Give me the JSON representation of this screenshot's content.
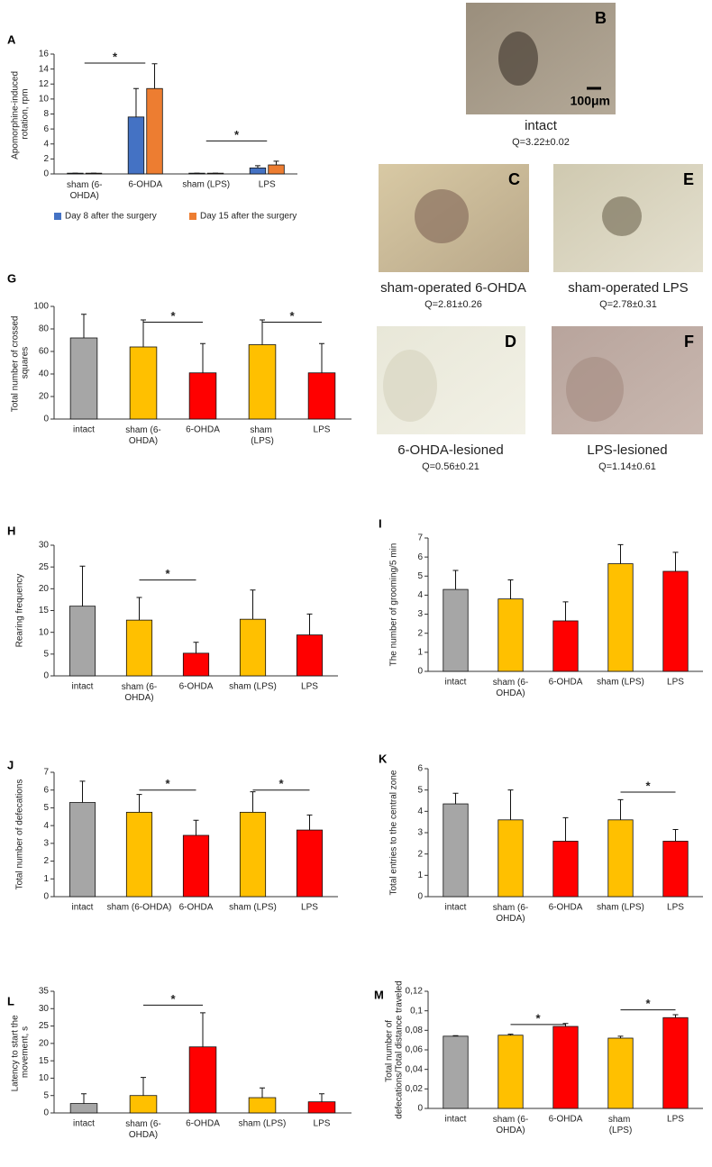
{
  "chart_data": [
    {
      "type": "grouped_bar",
      "panel": "A",
      "ylabel": "Apomorphine-induced rotation, rpm",
      "categories": [
        "sham (6-OHDA)",
        "6-OHDA",
        "sham (LPS)",
        "LPS"
      ],
      "series": [
        {
          "name": "Day 8 after the surgery",
          "color": "#4472c4",
          "values": [
            0.1,
            7.6,
            0.1,
            0.8
          ],
          "errors": [
            0,
            3.8,
            0,
            0.3
          ]
        },
        {
          "name": "Day 15 after the surgery",
          "color": "#ed7d31",
          "values": [
            0.1,
            11.4,
            0.1,
            1.2
          ],
          "errors": [
            0,
            3.3,
            0,
            0.5
          ]
        }
      ],
      "ylim": [
        0,
        16
      ],
      "yticks": [
        0,
        2,
        4,
        6,
        8,
        10,
        12,
        14,
        16
      ],
      "significance": [
        {
          "from": 0,
          "to": 1,
          "y": 14.8,
          "label": "*"
        },
        {
          "from": 2,
          "to": 3,
          "y": 4.4,
          "label": "*"
        }
      ]
    },
    {
      "type": "bar",
      "panel": "G",
      "ylabel": "Total number of crossed squares",
      "categories": [
        "intact",
        "sham (6-OHDA)",
        "6-OHDA",
        "sham (LPS)",
        "LPS"
      ],
      "values": [
        72,
        64,
        41,
        66,
        41
      ],
      "errors": [
        21,
        24,
        26,
        22,
        26
      ],
      "colors": [
        "#a6a6a6",
        "#ffc000",
        "#ff0000",
        "#ffc000",
        "#ff0000"
      ],
      "ylim": [
        0,
        100
      ],
      "yticks": [
        0,
        20,
        40,
        60,
        80,
        100
      ],
      "significance": [
        {
          "from": 1,
          "to": 2,
          "y": 86,
          "label": "*"
        },
        {
          "from": 3,
          "to": 4,
          "y": 86,
          "label": "*"
        }
      ]
    },
    {
      "type": "bar",
      "panel": "H",
      "ylabel": "Rearing frequency",
      "categories": [
        "intact",
        "sham (6-OHDA)",
        "6-OHDA",
        "sham (LPS)",
        "LPS"
      ],
      "values": [
        16,
        12.8,
        5.2,
        13,
        9.4
      ],
      "errors": [
        9.2,
        5.2,
        2.5,
        6.7,
        4.8
      ],
      "colors": [
        "#a6a6a6",
        "#ffc000",
        "#ff0000",
        "#ffc000",
        "#ff0000"
      ],
      "ylim": [
        0,
        30
      ],
      "yticks": [
        0,
        5,
        10,
        15,
        20,
        25,
        30
      ],
      "significance": [
        {
          "from": 1,
          "to": 2,
          "y": 22,
          "label": "*"
        }
      ]
    },
    {
      "type": "bar",
      "panel": "I",
      "ylabel": "The number of grooming/5 min",
      "categories": [
        "intact",
        "sham (6-OHDA)",
        "6-OHDA",
        "sham (LPS)",
        "LPS"
      ],
      "values": [
        4.3,
        3.8,
        2.65,
        5.65,
        5.25
      ],
      "errors": [
        1.0,
        1.0,
        1.0,
        1.0,
        1.0
      ],
      "colors": [
        "#a6a6a6",
        "#ffc000",
        "#ff0000",
        "#ffc000",
        "#ff0000"
      ],
      "ylim": [
        0,
        7
      ],
      "yticks": [
        0,
        1,
        2,
        3,
        4,
        5,
        6,
        7
      ],
      "significance": []
    },
    {
      "type": "bar",
      "panel": "J",
      "ylabel": "Total number of defecations",
      "categories": [
        "intact",
        "sham (6-OHDA)",
        "6-OHDA",
        "sham (LPS)",
        "LPS"
      ],
      "values": [
        5.3,
        4.75,
        3.45,
        4.75,
        3.75
      ],
      "errors": [
        1.2,
        1.0,
        0.85,
        1.15,
        0.85
      ],
      "colors": [
        "#a6a6a6",
        "#ffc000",
        "#ff0000",
        "#ffc000",
        "#ff0000"
      ],
      "ylim": [
        0,
        7
      ],
      "yticks": [
        0,
        1,
        2,
        3,
        4,
        5,
        6,
        7
      ],
      "significance": [
        {
          "from": 1,
          "to": 2,
          "y": 6.0,
          "label": "*"
        },
        {
          "from": 3,
          "to": 4,
          "y": 6.0,
          "label": "*"
        }
      ]
    },
    {
      "type": "bar",
      "panel": "K",
      "ylabel": "Total entries to the central zone",
      "categories": [
        "intact",
        "sham (6-OHDA)",
        "6-OHDA",
        "sham (LPS)",
        "LPS"
      ],
      "values": [
        4.35,
        3.6,
        2.6,
        3.6,
        2.6
      ],
      "errors": [
        0.5,
        1.4,
        1.1,
        0.95,
        0.55
      ],
      "colors": [
        "#a6a6a6",
        "#ffc000",
        "#ff0000",
        "#ffc000",
        "#ff0000"
      ],
      "ylim": [
        0,
        6
      ],
      "yticks": [
        0,
        1,
        2,
        3,
        4,
        5,
        6
      ],
      "significance": [
        {
          "from": 3,
          "to": 4,
          "y": 4.9,
          "label": "*"
        }
      ]
    },
    {
      "type": "bar",
      "panel": "L",
      "ylabel": "Latency to start the movement, s",
      "categories": [
        "intact",
        "sham (6-OHDA)",
        "6-OHDA",
        "sham (LPS)",
        "LPS"
      ],
      "values": [
        2.7,
        5.0,
        19,
        4.4,
        3.2
      ],
      "errors": [
        2.8,
        5.2,
        9.8,
        2.8,
        2.3
      ],
      "colors": [
        "#a6a6a6",
        "#ffc000",
        "#ff0000",
        "#ffc000",
        "#ff0000"
      ],
      "ylim": [
        0,
        35
      ],
      "yticks": [
        0,
        5,
        10,
        15,
        20,
        25,
        30,
        35
      ],
      "significance": [
        {
          "from": 1,
          "to": 2,
          "y": 31,
          "label": "*"
        }
      ]
    },
    {
      "type": "bar",
      "panel": "M",
      "ylabel": "Total number of defecations/Total distance traveled",
      "categories": [
        "intact",
        "sham (6-OHDA)",
        "6-OHDA",
        "sham (LPS)",
        "LPS"
      ],
      "values": [
        0.074,
        0.075,
        0.084,
        0.072,
        0.093
      ],
      "errors": [
        0.0005,
        0.001,
        0.003,
        0.002,
        0.003
      ],
      "colors": [
        "#a6a6a6",
        "#ffc000",
        "#ff0000",
        "#ffc000",
        "#ff0000"
      ],
      "ylim": [
        0,
        0.12
      ],
      "yticks": [
        0,
        {
          "value": 0.02,
          "label": "0,02"
        },
        {
          "value": 0.04,
          "label": "0,04"
        },
        {
          "value": 0.06,
          "label": "0,06"
        },
        {
          "value": 0.08,
          "label": "0,08"
        },
        {
          "value": 0.1,
          "label": "0,1"
        },
        {
          "value": 0.12,
          "label": "0,12"
        }
      ],
      "significance": [
        {
          "from": 1,
          "to": 2,
          "y": 0.086,
          "label": "*"
        },
        {
          "from": 3,
          "to": 4,
          "y": 0.101,
          "label": "*"
        }
      ]
    }
  ],
  "images": [
    {
      "letter": "B",
      "caption": "intact",
      "q": "Q=3.22±0.02",
      "scale_label": "100μm"
    },
    {
      "letter": "C",
      "caption": "sham-operated 6-OHDA",
      "q": "Q=2.81±0.26"
    },
    {
      "letter": "E",
      "caption": "sham-operated LPS",
      "q": "Q=2.78±0.31"
    },
    {
      "letter": "D",
      "caption": "6-OHDA-lesioned",
      "q": "Q=0.56±0.21"
    },
    {
      "letter": "F",
      "caption": "LPS-lesioned",
      "q": "Q=1.14±0.61"
    }
  ]
}
